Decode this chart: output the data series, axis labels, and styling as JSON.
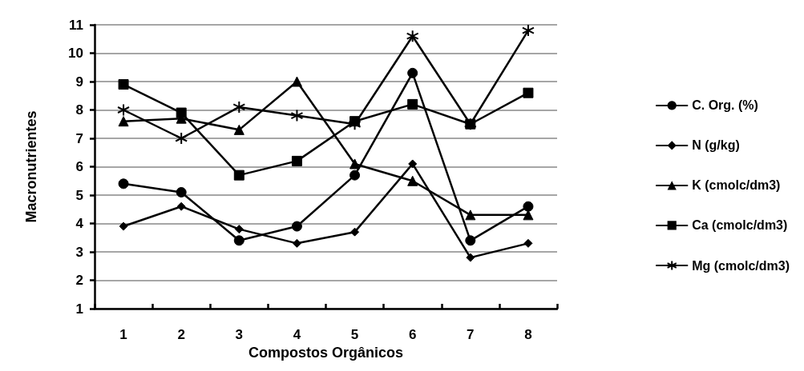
{
  "chart_data": {
    "type": "line",
    "xlabel": "Compostos Orgânicos",
    "ylabel": "Macronutrientes",
    "categories": [
      "1",
      "2",
      "3",
      "4",
      "5",
      "6",
      "7",
      "8"
    ],
    "ylim": [
      1,
      11
    ],
    "yticks": [
      1,
      2,
      3,
      4,
      5,
      6,
      7,
      8,
      9,
      10,
      11
    ],
    "grid": "y",
    "legend": "right",
    "line_style": "solid",
    "series": [
      {
        "name": "C. Org. (%)",
        "color": "#000000",
        "marker": "circle",
        "values": [
          5.4,
          5.1,
          3.4,
          3.9,
          5.7,
          9.3,
          3.4,
          4.6
        ]
      },
      {
        "name": "N (g/kg)",
        "color": "#000000",
        "marker": "diamond",
        "values": [
          3.9,
          4.6,
          3.8,
          3.3,
          3.7,
          6.1,
          2.8,
          3.3
        ]
      },
      {
        "name": "K (cmolc/dm3)",
        "color": "#000000",
        "marker": "triangle",
        "values": [
          7.6,
          7.7,
          7.3,
          9.0,
          6.1,
          5.5,
          4.3,
          4.3
        ]
      },
      {
        "name": "Ca (cmolc/dm3)",
        "color": "#000000",
        "marker": "square",
        "values": [
          8.9,
          7.9,
          5.7,
          6.2,
          7.6,
          8.2,
          7.5,
          8.6
        ]
      },
      {
        "name": "Mg (cmolc/dm3)",
        "color": "#000000",
        "marker": "cross",
        "values": [
          8.0,
          7.0,
          8.1,
          7.8,
          7.5,
          10.6,
          7.5,
          10.8
        ]
      }
    ]
  }
}
